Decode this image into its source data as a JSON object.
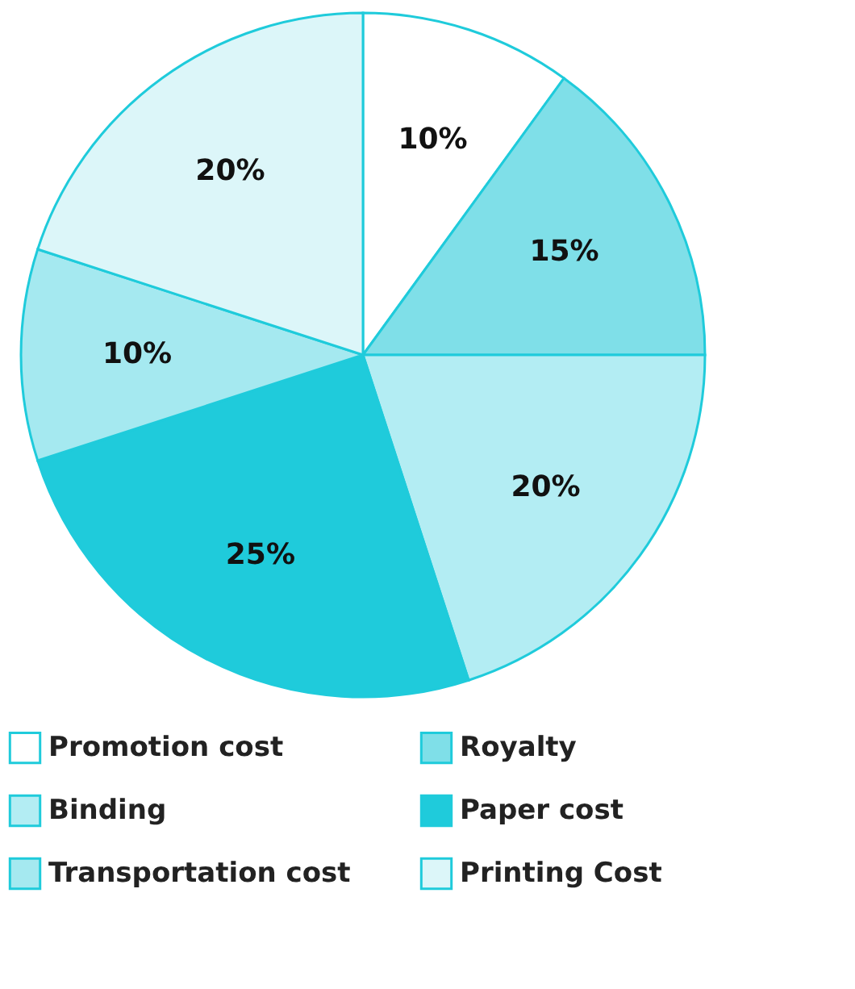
{
  "chart_data": {
    "type": "pie",
    "categories": [
      "Promotion cost",
      "Royalty",
      "Binding",
      "Paper cost",
      "Transportation cost",
      "Printing Cost"
    ],
    "values": [
      10,
      15,
      20,
      25,
      10,
      20
    ],
    "value_labels": [
      "10%",
      "15%",
      "20%",
      "25%",
      "10%",
      "20%"
    ],
    "colors": [
      "#ffffff",
      "#7fdfe8",
      "#b3edf3",
      "#1fcbdb",
      "#a5e9f0",
      "#dcf6f9"
    ],
    "legend": "bottom"
  }
}
